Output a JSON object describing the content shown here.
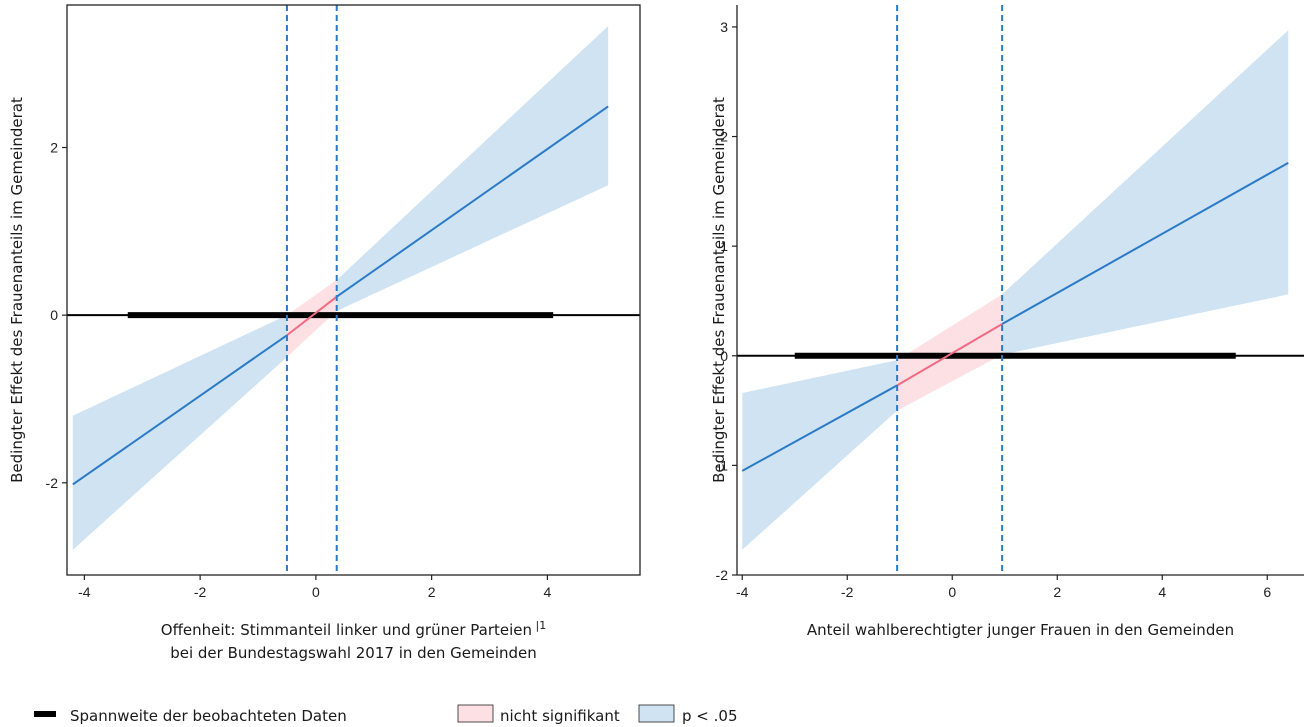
{
  "chart_data": [
    {
      "type": "line",
      "title": "",
      "xlabel_lines": [
        "Offenheit: Stimmanteil linker und grüner Parteien",
        "bei der Bundestagswahl 2017 in den Gemeinden"
      ],
      "xlabel_footnote": "1",
      "ylabel": "Bedingter Effekt des Frauenanteils im Gemeinderat",
      "xlim": [
        -4.3,
        5.6
      ],
      "ylim": [
        -3.1,
        3.7
      ],
      "xticks": [
        -4,
        -2,
        0,
        2,
        4
      ],
      "yticks": [
        -2,
        0,
        2
      ],
      "xtick_labels": [
        "-4",
        "-2",
        "0",
        "2",
        "4"
      ],
      "ytick_labels": [
        "-2",
        "0",
        "2"
      ],
      "series": [
        {
          "x": [
            -4.2,
            -0.5,
            -0.5,
            0.36,
            0.36,
            5.05
          ],
          "y": [
            -2.02,
            -0.24,
            -0.24,
            0.22,
            0.22,
            2.49
          ],
          "lower": [
            -2.8,
            -0.5,
            -0.5,
            0.05,
            0.05,
            1.55
          ],
          "upper": [
            -1.2,
            0.0,
            0.0,
            0.42,
            0.42,
            3.45
          ],
          "segments": [
            "sig",
            "nonsig",
            "sig"
          ],
          "segment_breaks": [
            -0.5,
            0.36
          ]
        }
      ],
      "significance_bounds": [
        -0.5,
        0.36
      ],
      "observed_range": [
        -3.25,
        4.1
      ],
      "reference_line_y": 0
    },
    {
      "type": "line",
      "title": "",
      "xlabel_lines": [
        "Anteil wahlberechtigter junger Frauen in den Gemeinden"
      ],
      "xlabel_footnote": "",
      "ylabel": "Bedingter Effekt des Frauenanteils im Gemeinderat",
      "xlim": [
        -4.1,
        6.7
      ],
      "ylim": [
        -2.0,
        3.2
      ],
      "xticks": [
        -4,
        -2,
        0,
        2,
        4,
        6
      ],
      "yticks": [
        -2,
        -1,
        0,
        1,
        2,
        3
      ],
      "xtick_labels": [
        "-4",
        "-2",
        "0",
        "2",
        "4",
        "6"
      ],
      "ytick_labels": [
        "-2",
        "-1",
        "0",
        "1",
        "2",
        "3"
      ],
      "series": [
        {
          "x": [
            -4.0,
            -1.05,
            -1.05,
            0.95,
            0.95,
            6.4
          ],
          "y": [
            -1.05,
            -0.27,
            -0.27,
            0.29,
            0.29,
            1.76
          ],
          "lower": [
            -1.77,
            -0.5,
            -0.5,
            0.01,
            0.01,
            0.56
          ],
          "upper": [
            -0.34,
            -0.04,
            -0.04,
            0.56,
            0.56,
            2.97
          ],
          "segments": [
            "sig",
            "nonsig",
            "sig"
          ],
          "segment_breaks": [
            -1.05,
            0.95
          ]
        }
      ],
      "significance_bounds": [
        -1.05,
        0.95
      ],
      "observed_range": [
        -3.0,
        5.4
      ],
      "reference_line_y": 0
    }
  ],
  "legend": {
    "range_label": "Spannweite der beobachteten Daten",
    "nonsig_label": "nicht signifikant",
    "sig_label": "p < .05"
  },
  "colors": {
    "line": "#2a7ac7",
    "sig_band": "#cfe3f3",
    "nonsig_band": "#fde0e4",
    "nonsig_line": "#f06b80",
    "bound_line": "#2a7ac7",
    "range_bar": "#000000",
    "zero_line": "#000000"
  }
}
